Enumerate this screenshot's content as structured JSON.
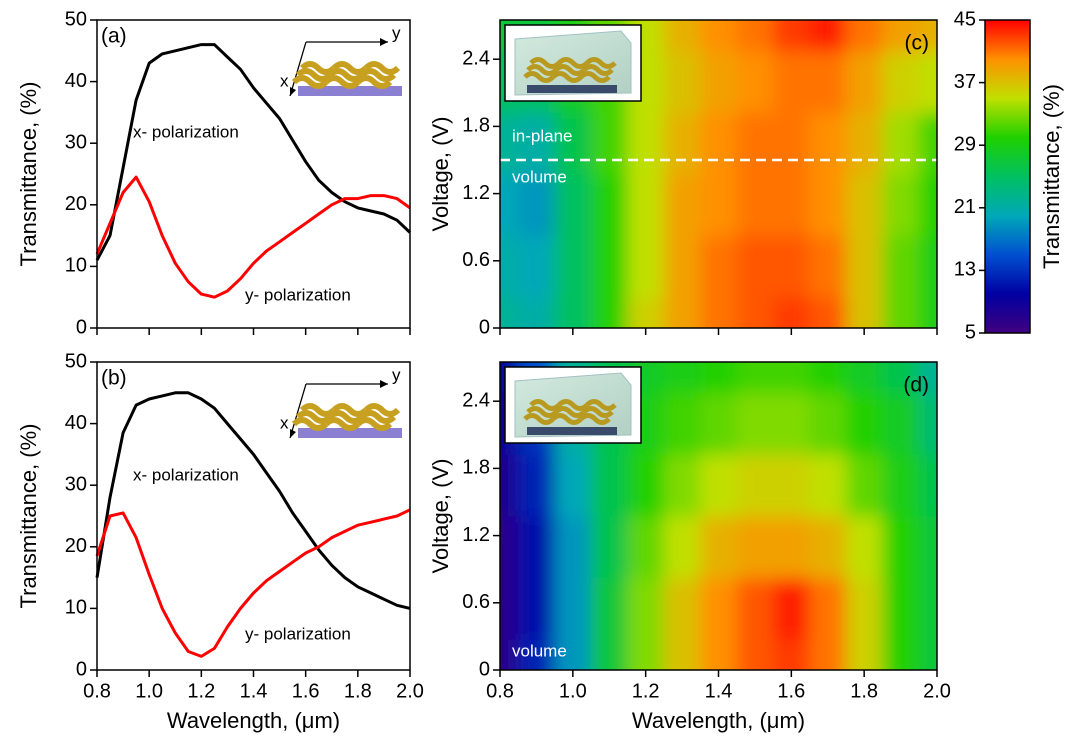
{
  "chart_data": [
    {
      "type": "line",
      "panel": "(a)",
      "ylabel": "Transmittance, (%)",
      "x": [
        0.8,
        0.85,
        0.9,
        0.95,
        1.0,
        1.05,
        1.1,
        1.15,
        1.2,
        1.25,
        1.3,
        1.35,
        1.4,
        1.45,
        1.5,
        1.55,
        1.6,
        1.65,
        1.7,
        1.75,
        1.8,
        1.85,
        1.9,
        1.95,
        2.0
      ],
      "series": [
        {
          "name": "x- polarization",
          "color": "#000000",
          "values": [
            11,
            15,
            26,
            37,
            43,
            44.5,
            45,
            45.5,
            46,
            46,
            44,
            42,
            39,
            36.5,
            34,
            30.5,
            27,
            24,
            22,
            20.5,
            19.5,
            19,
            18.5,
            17.5,
            15.5
          ]
        },
        {
          "name": "y- polarization",
          "color": "#ff0000",
          "values": [
            12,
            17,
            22,
            24.5,
            20.5,
            15,
            10.5,
            7.5,
            5.5,
            5,
            6,
            8,
            10.5,
            12.5,
            14,
            15.5,
            17,
            18.5,
            20,
            21,
            21,
            21.5,
            21.5,
            21,
            19.5
          ]
        }
      ],
      "xlim": [
        0.8,
        2.0
      ],
      "xticks": [
        0.8,
        1,
        1.2,
        1.4,
        1.6,
        1.8,
        2
      ],
      "xtick_labels": false,
      "ylim": [
        0,
        50
      ],
      "yticks": [
        0,
        10,
        20,
        30,
        40,
        50
      ],
      "inset_labels": [
        "x",
        "y"
      ]
    },
    {
      "type": "line",
      "panel": "(b)",
      "ylabel": "Transmittance, (%)",
      "xlabel": "Wavelength, (μm)",
      "x": [
        0.8,
        0.85,
        0.9,
        0.95,
        1.0,
        1.05,
        1.1,
        1.15,
        1.2,
        1.25,
        1.3,
        1.35,
        1.4,
        1.45,
        1.5,
        1.55,
        1.6,
        1.65,
        1.7,
        1.75,
        1.8,
        1.85,
        1.9,
        1.95,
        2.0
      ],
      "series": [
        {
          "name": "x- polarization",
          "color": "#000000",
          "values": [
            15,
            28,
            38.5,
            43,
            44,
            44.5,
            45,
            45,
            44,
            42.5,
            40,
            37.5,
            35,
            32,
            29,
            25.5,
            22.5,
            19.5,
            17,
            15,
            13.5,
            12.5,
            11.5,
            10.5,
            10
          ]
        },
        {
          "name": "y- polarization",
          "color": "#ff0000",
          "values": [
            18.5,
            25,
            25.5,
            21.5,
            15.5,
            10,
            6,
            3,
            2.2,
            3.5,
            7,
            10,
            12.5,
            14.5,
            16,
            17.5,
            19,
            20,
            21.5,
            22.5,
            23.5,
            24,
            24.5,
            25,
            26
          ]
        }
      ],
      "xlim": [
        0.8,
        2.0
      ],
      "xticks": [
        0.8,
        {
          "value": 1,
          "label": "1.0"
        },
        1.2,
        1.4,
        1.6,
        1.8,
        {
          "value": 2,
          "label": "2.0"
        }
      ],
      "xtick_labels": true,
      "ylim": [
        0,
        50
      ],
      "yticks": [
        0,
        10,
        20,
        30,
        40,
        50
      ],
      "inset_labels": [
        "x",
        "y"
      ]
    },
    {
      "type": "heatmap",
      "panel": "(c)",
      "ylabel": "Voltage, (V)",
      "annotations": [
        "in-plane",
        "volume"
      ],
      "divider": 1.5,
      "x": [
        0.8,
        0.9,
        1.0,
        1.1,
        1.2,
        1.3,
        1.4,
        1.5,
        1.6,
        1.7,
        1.8,
        1.9,
        2.0
      ],
      "y": [
        0,
        0.55,
        1.1,
        1.65,
        2.2,
        2.75
      ],
      "z": [
        [
          22,
          21,
          25,
          30,
          36,
          39,
          41,
          42,
          43,
          42,
          37,
          32,
          29
        ],
        [
          21,
          20,
          25,
          30,
          35,
          39,
          41,
          42,
          42,
          41,
          37,
          32,
          29
        ],
        [
          20,
          19,
          25,
          30,
          35,
          39,
          40,
          41,
          41,
          40,
          37,
          33,
          30
        ],
        [
          22,
          21,
          26,
          31,
          35,
          38,
          40,
          41,
          41,
          40,
          38,
          34,
          31
        ],
        [
          25,
          25,
          28,
          31,
          35,
          37,
          39,
          40,
          41,
          41,
          39,
          36,
          35
        ],
        [
          27,
          27,
          29,
          32,
          35,
          38,
          40,
          41,
          43,
          44,
          41,
          39,
          38
        ]
      ],
      "xlim": [
        0.8,
        2.0
      ],
      "xticks": [
        0.8,
        1,
        1.2,
        1.4,
        1.6,
        1.8,
        2
      ],
      "xtick_labels": false,
      "ylim": [
        0,
        2.75
      ],
      "yticks": [
        0,
        0.6,
        1.2,
        1.8,
        2.4
      ],
      "colorbar_label": "Transmittance, (%)",
      "zlim": [
        5,
        45
      ],
      "zticks": [
        5,
        13,
        21,
        29,
        37,
        45
      ],
      "colormap": [
        "#400080",
        "#0000a0",
        "#0050d0",
        "#00a8b8",
        "#00c060",
        "#20d000",
        "#c0e000",
        "#ff9000",
        "#ff0000"
      ]
    },
    {
      "type": "heatmap",
      "panel": "(d)",
      "ylabel": "Voltage, (V)",
      "xlabel": "Wavelength, (μm)",
      "annotations": [
        "volume"
      ],
      "x": [
        0.8,
        0.9,
        1.0,
        1.1,
        1.2,
        1.3,
        1.4,
        1.5,
        1.6,
        1.7,
        1.8,
        1.9,
        2.0
      ],
      "y": [
        0,
        0.55,
        1.1,
        1.65,
        2.2,
        2.75
      ],
      "z": [
        [
          7,
          12,
          19,
          27,
          33,
          37,
          40,
          42,
          43,
          41,
          36,
          30,
          27
        ],
        [
          7,
          11,
          19,
          27,
          33,
          37,
          40,
          42,
          44,
          41,
          36,
          30,
          27
        ],
        [
          7,
          11,
          19,
          26,
          32,
          35,
          38,
          39,
          39,
          38,
          35,
          30,
          27
        ],
        [
          8,
          12,
          20,
          26,
          30,
          33,
          35,
          36,
          36,
          35,
          32,
          29,
          26
        ],
        [
          9,
          13,
          21,
          26,
          29,
          31,
          32,
          33,
          33,
          32,
          30,
          28,
          24
        ],
        [
          10,
          15,
          22,
          26,
          28,
          29,
          30,
          31,
          31,
          30,
          28,
          26,
          22
        ]
      ],
      "xlim": [
        0.8,
        2.0
      ],
      "xticks": [
        0.8,
        {
          "value": 1,
          "label": "1.0"
        },
        1.2,
        1.4,
        1.6,
        1.8,
        {
          "value": 2,
          "label": "2.0"
        }
      ],
      "xtick_labels": true,
      "ylim": [
        0,
        2.75
      ],
      "yticks": [
        0,
        0.6,
        1.2,
        1.8,
        2.4
      ]
    }
  ]
}
